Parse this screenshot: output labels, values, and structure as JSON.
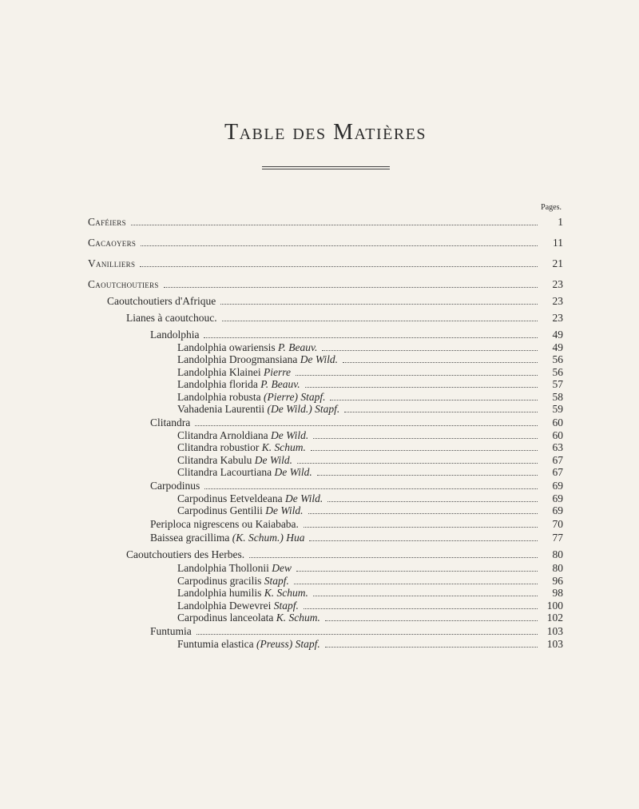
{
  "title": "Table des Matières",
  "pages_label": "Pages.",
  "rows": [
    {
      "label": "Caféiers",
      "page": "1",
      "indent": 0,
      "sc": true,
      "gap": "s"
    },
    {
      "label": "Cacaoyers",
      "page": "11",
      "indent": 0,
      "sc": true,
      "gap": "l"
    },
    {
      "label": "Vanilliers",
      "page": "21",
      "indent": 0,
      "sc": true,
      "gap": "l"
    },
    {
      "label": "Caoutchoutiers",
      "page": "23",
      "indent": 0,
      "sc": true,
      "gap": "l"
    },
    {
      "label": "Caoutchoutiers d'Afrique",
      "page": "23",
      "indent": 1,
      "sc": false,
      "gap": "m"
    },
    {
      "label": "Lianes à caoutchouc.",
      "page": "23",
      "indent": 2,
      "sc": false,
      "gap": "m"
    },
    {
      "label": "Landolphia",
      "page": "49",
      "indent": 3,
      "sc": false,
      "gap": "m"
    },
    {
      "label": "Landolphia owariensis P. Beauv.",
      "page": "49",
      "indent": 4,
      "sc": false,
      "gap": "xs",
      "ital": "P. Beauv."
    },
    {
      "label": "Landolphia Droogmansiana De Wild.",
      "page": "56",
      "indent": 4,
      "sc": false,
      "gap": "xs",
      "ital": "De Wild."
    },
    {
      "label": "Landolphia Klainei Pierre",
      "page": "56",
      "indent": 4,
      "sc": false,
      "gap": "xs",
      "ital": "Pierre"
    },
    {
      "label": "Landolphia florida P. Beauv.",
      "page": "57",
      "indent": 4,
      "sc": false,
      "gap": "xs",
      "ital": "P. Beauv."
    },
    {
      "label": "Landolphia robusta (Pierre) Stapf.",
      "page": "58",
      "indent": 4,
      "sc": false,
      "gap": "xs",
      "ital": "(Pierre) Stapf."
    },
    {
      "label": "Vahadenia Laurentii (De Wild.) Stapf.",
      "page": "59",
      "indent": 4,
      "sc": false,
      "gap": "xs",
      "ital": "(De Wild.) Stapf."
    },
    {
      "label": "Clitandra",
      "page": "60",
      "indent": 3,
      "sc": false,
      "gap": "s"
    },
    {
      "label": "Clitandra Arnoldiana De Wild.",
      "page": "60",
      "indent": 4,
      "sc": false,
      "gap": "xs",
      "ital": "De Wild."
    },
    {
      "label": "Clitandra robustior K. Schum.",
      "page": "63",
      "indent": 4,
      "sc": false,
      "gap": "xs",
      "ital": "K. Schum."
    },
    {
      "label": "Clitandra Kabulu De Wild.",
      "page": "67",
      "indent": 4,
      "sc": false,
      "gap": "xs",
      "ital": "De Wild."
    },
    {
      "label": "Clitandra Lacourtiana De Wild.",
      "page": "67",
      "indent": 4,
      "sc": false,
      "gap": "xs",
      "ital": "De Wild."
    },
    {
      "label": "Carpodinus",
      "page": "69",
      "indent": 3,
      "sc": false,
      "gap": "s"
    },
    {
      "label": "Carpodinus Eetveldeana De Wild.",
      "page": "69",
      "indent": 4,
      "sc": false,
      "gap": "xs",
      "ital": "De Wild."
    },
    {
      "label": "Carpodinus Gentilii De Wild.",
      "page": "69",
      "indent": 4,
      "sc": false,
      "gap": "xs",
      "ital": "De Wild."
    },
    {
      "label": "Periploca nigrescens ou Kaiababa.",
      "page": "70",
      "indent": 3,
      "sc": false,
      "gap": "s"
    },
    {
      "label": "Baissea gracillima (K. Schum.) Hua",
      "page": "77",
      "indent": 3,
      "sc": false,
      "gap": "s",
      "ital": "(K. Schum.) Hua"
    },
    {
      "label": "Caoutchoutiers des Herbes.",
      "page": "80",
      "indent": 2,
      "sc": false,
      "gap": "m"
    },
    {
      "label": "Landolphia Thollonii Dew",
      "page": "80",
      "indent": 4,
      "sc": false,
      "gap": "s",
      "ital": "Dew"
    },
    {
      "label": "Carpodinus gracilis Stapf.",
      "page": "96",
      "indent": 4,
      "sc": false,
      "gap": "xs",
      "ital": "Stapf."
    },
    {
      "label": "Landolphia humilis K. Schum.",
      "page": "98",
      "indent": 4,
      "sc": false,
      "gap": "xs",
      "ital": "K. Schum."
    },
    {
      "label": "Landolphia Dewevrei Stapf.",
      "page": "100",
      "indent": 4,
      "sc": false,
      "gap": "xs",
      "ital": "Stapf."
    },
    {
      "label": "Carpodinus lanceolata K. Schum.",
      "page": "102",
      "indent": 4,
      "sc": false,
      "gap": "xs",
      "ital": "K. Schum."
    },
    {
      "label": "Funtumia",
      "page": "103",
      "indent": 3,
      "sc": false,
      "gap": "s"
    },
    {
      "label": "Funtumia elastica (Preuss) Stapf.",
      "page": "103",
      "indent": 4,
      "sc": false,
      "gap": "xs",
      "ital": "(Preuss) Stapf."
    }
  ]
}
